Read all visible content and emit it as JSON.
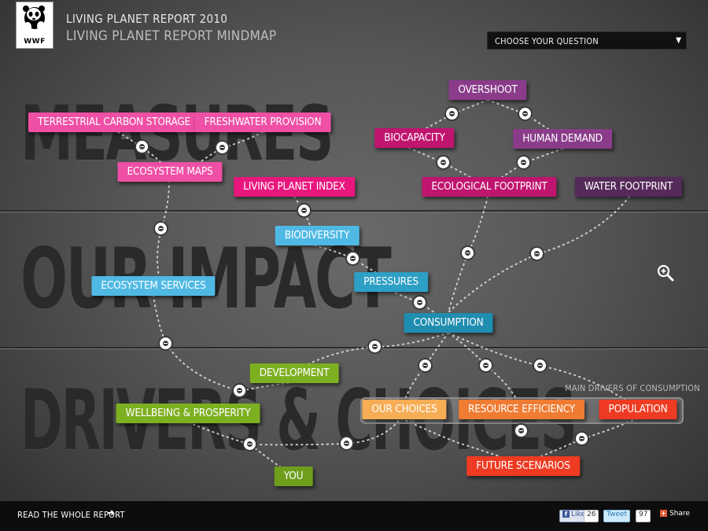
{
  "header": {
    "logo_text": "WWF",
    "title": "LIVING PLANET REPORT 2010",
    "subtitle": "LIVING PLANET  REPORT MINDMAP"
  },
  "question_select": {
    "label": "CHOOSE YOUR QUESTION",
    "arrow": "▼"
  },
  "sections": {
    "measures": "MEASURES",
    "impact": "OUR IMPACT",
    "drivers": "DRIVERS & CHOICES"
  },
  "nodes": {
    "terrestrial_carbon": "TERRESTRIAL CARBON STORAGE",
    "freshwater": "FRESHWATER PROVISION",
    "ecosystem_maps": "ECOSYSTEM MAPS",
    "living_planet_index": "LIVING PLANET INDEX",
    "overshoot": "OVERSHOOT",
    "biocapacity": "BIOCAPACITY",
    "human_demand": "HUMAN DEMAND",
    "ecological_footprint": "ECOLOGICAL FOOTPRINT",
    "water_footprint": "WATER FOOTPRINT",
    "biodiversity": "BIODIVERSITY",
    "ecosystem_services": "ECOSYSTEM SERVICES",
    "pressures": "PRESSURES",
    "consumption": "CONSUMPTION",
    "development": "DEVELOPMENT",
    "wellbeing": "WELLBEING & PROSPERITY",
    "you": "YOU",
    "our_choices": "OUR CHOICES",
    "resource_efficiency": "RESOURCE EFFICIENCY",
    "population": "POPULATION",
    "future_scenarios": "FUTURE SCENARIOS"
  },
  "drivers_title": "MAIN DRIVERS OF CONSUMPTION",
  "footer": {
    "read_report": "READ THE  WHOLE REPORT",
    "arrow": "➔",
    "like_label": "Like",
    "like_count": "26",
    "tweet_label": "Tweet",
    "tweet_count": "97",
    "share_label": "Share"
  },
  "icons": {
    "zoom": "zoom-in-icon",
    "logo": "panda-icon"
  }
}
